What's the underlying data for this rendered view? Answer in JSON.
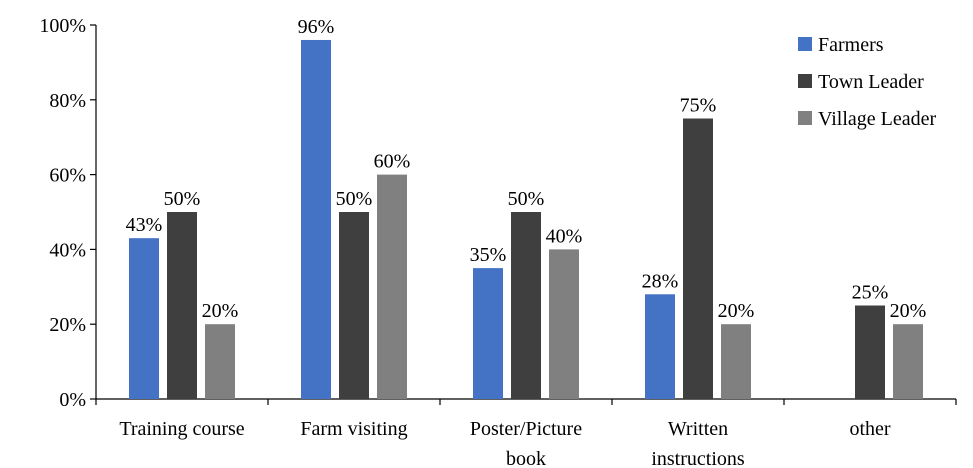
{
  "chart_data": {
    "type": "bar",
    "title": "",
    "xlabel": "",
    "ylabel": "",
    "ylim": [
      0,
      100
    ],
    "yticks": [
      0,
      20,
      40,
      60,
      80,
      100
    ],
    "ytick_labels": [
      "0%",
      "20%",
      "40%",
      "60%",
      "80%",
      "100%"
    ],
    "grid": false,
    "legend_position": "top-right",
    "categories": [
      [
        "Training course"
      ],
      [
        "Farm visiting"
      ],
      [
        "Poster/Picture",
        "book"
      ],
      [
        "Written",
        "instructions"
      ],
      [
        "other"
      ]
    ],
    "series": [
      {
        "name": "Farmers",
        "color": "#4472C4",
        "values": [
          43,
          96,
          35,
          28,
          0
        ],
        "labels": [
          "43%",
          "96%",
          "35%",
          "28%",
          ""
        ]
      },
      {
        "name": "Town Leader",
        "color": "#3F3F3F",
        "values": [
          50,
          50,
          50,
          75,
          25
        ],
        "labels": [
          "50%",
          "50%",
          "50%",
          "75%",
          "25%"
        ]
      },
      {
        "name": "Village Leader",
        "color": "#808080",
        "values": [
          20,
          60,
          40,
          20,
          20
        ],
        "labels": [
          "20%",
          "60%",
          "40%",
          "20%",
          "20%"
        ]
      }
    ]
  }
}
